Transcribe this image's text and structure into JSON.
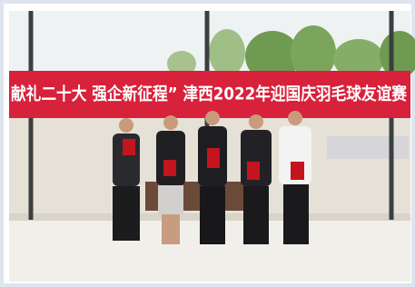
{
  "banner": {
    "text": "献礼二十大  强企新征程” 津西2022年迎国庆羽毛球友谊赛"
  }
}
